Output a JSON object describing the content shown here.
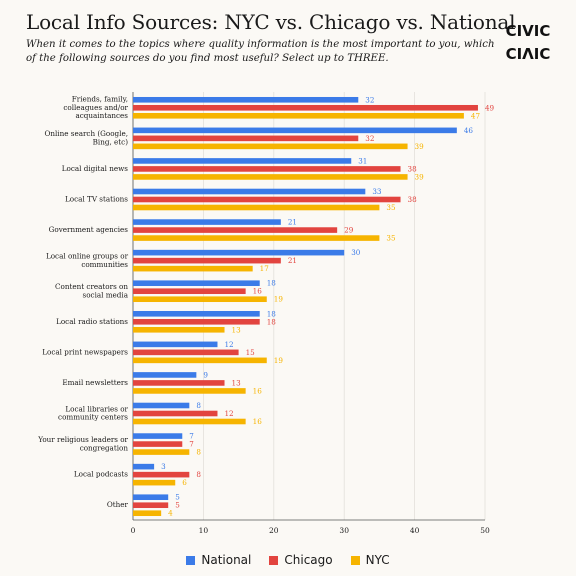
{
  "header": {
    "title": "Local Info Sources: NYC vs. Chicago vs. National",
    "subtitle": "When it comes to the topics where quality information is the most important to you, which of the following sources do you find most useful? Select up to THREE."
  },
  "logo": {
    "icon": "civic-logo",
    "text": "CIVIC"
  },
  "colors": {
    "National": "#3b7be8",
    "Chicago": "#e2443f",
    "NYC": "#f6b400",
    "background": "#fbf9f5"
  },
  "chart_data": {
    "type": "bar",
    "orientation": "horizontal",
    "categories": [
      "Friends, family, colleagues and/or acquaintances",
      "Online search (Google, Bing, etc)",
      "Local digital news",
      "Local TV stations",
      "Government agencies",
      "Local online groups or communities",
      "Content creators on social media",
      "Local radio stations",
      "Local print newspapers",
      "Email newsletters",
      "Local libraries or community centers",
      "Your religious leaders or congregation",
      "Local podcasts",
      "Other"
    ],
    "category_lines": [
      [
        "Friends, family,",
        "colleagues and/or",
        "acquaintances"
      ],
      [
        "Online search (Google,",
        "Bing, etc)"
      ],
      [
        "Local digital news"
      ],
      [
        "Local TV stations"
      ],
      [
        "Government agencies"
      ],
      [
        "Local online groups or",
        "communities"
      ],
      [
        "Content creators on",
        "social media"
      ],
      [
        "Local radio stations"
      ],
      [
        "Local print newspapers"
      ],
      [
        "Email newsletters"
      ],
      [
        "Local libraries or",
        "community centers"
      ],
      [
        "Your religious leaders or",
        "congregation"
      ],
      [
        "Local podcasts"
      ],
      [
        "Other"
      ]
    ],
    "series": [
      {
        "name": "National",
        "values": [
          32,
          46,
          31,
          33,
          21,
          30,
          18,
          18,
          12,
          9,
          8,
          7,
          3,
          5
        ]
      },
      {
        "name": "Chicago",
        "values": [
          49,
          32,
          38,
          38,
          29,
          21,
          16,
          18,
          15,
          13,
          12,
          7,
          8,
          5
        ]
      },
      {
        "name": "NYC",
        "values": [
          47,
          39,
          39,
          35,
          35,
          17,
          19,
          13,
          19,
          16,
          16,
          8,
          6,
          4
        ]
      }
    ],
    "xlim": [
      0,
      50
    ],
    "xticks": [
      0,
      10,
      20,
      30,
      40,
      50
    ],
    "grid": true,
    "legend_position": "bottom"
  }
}
